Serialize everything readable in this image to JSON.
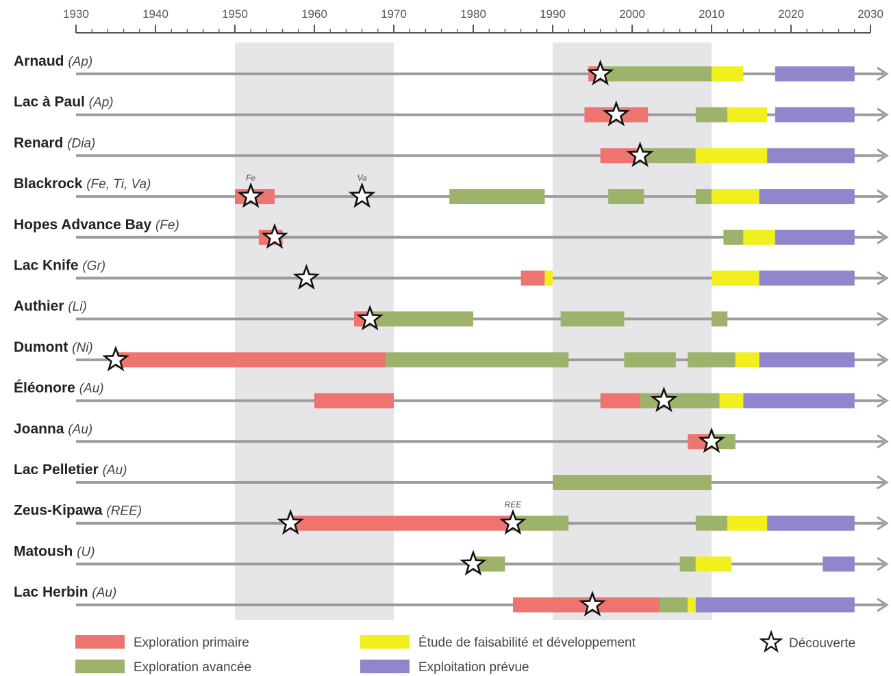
{
  "chart_data": {
    "type": "timeline",
    "x_ticks": [
      1930,
      1940,
      1950,
      1960,
      1970,
      1980,
      1990,
      2000,
      2010,
      2020,
      2030
    ],
    "xlim": [
      1930,
      2030
    ],
    "shaded_periods": [
      [
        1950,
        1970
      ],
      [
        1990,
        2010
      ]
    ],
    "phase_colors": {
      "primary": "#ee7470",
      "advanced": "#9db36b",
      "feasibility": "#f2ef1e",
      "exploitation": "#8f86cc"
    },
    "projects": [
      {
        "name": "Arnaud",
        "minerals": "(Ap)",
        "bars": [
          {
            "phase": "primary",
            "start": 1994.5,
            "end": 1996.5
          },
          {
            "phase": "advanced",
            "start": 1996.5,
            "end": 2010
          },
          {
            "phase": "feasibility",
            "start": 2010,
            "end": 2014
          },
          {
            "phase": "exploitation",
            "start": 2018,
            "end": 2028
          }
        ],
        "discoveries": [
          {
            "year": 1996,
            "label": ""
          }
        ]
      },
      {
        "name": "Lac à Paul",
        "minerals": "(Ap)",
        "bars": [
          {
            "phase": "primary",
            "start": 1994,
            "end": 2002
          },
          {
            "phase": "advanced",
            "start": 2008,
            "end": 2012
          },
          {
            "phase": "feasibility",
            "start": 2012,
            "end": 2017
          },
          {
            "phase": "exploitation",
            "start": 2018,
            "end": 2028
          }
        ],
        "discoveries": [
          {
            "year": 1998,
            "label": ""
          }
        ]
      },
      {
        "name": "Renard",
        "minerals": "(Dia)",
        "bars": [
          {
            "phase": "primary",
            "start": 1996,
            "end": 2001
          },
          {
            "phase": "advanced",
            "start": 2001,
            "end": 2008
          },
          {
            "phase": "feasibility",
            "start": 2008,
            "end": 2017
          },
          {
            "phase": "exploitation",
            "start": 2017,
            "end": 2028
          }
        ],
        "discoveries": [
          {
            "year": 2001,
            "label": ""
          }
        ]
      },
      {
        "name": "Blackrock",
        "minerals": "(Fe, Ti, Va)",
        "bars": [
          {
            "phase": "primary",
            "start": 1950,
            "end": 1955
          },
          {
            "phase": "advanced",
            "start": 1977,
            "end": 1989
          },
          {
            "phase": "advanced",
            "start": 1997,
            "end": 2001.5
          },
          {
            "phase": "advanced",
            "start": 2008,
            "end": 2010
          },
          {
            "phase": "feasibility",
            "start": 2010,
            "end": 2016
          },
          {
            "phase": "exploitation",
            "start": 2016,
            "end": 2028
          }
        ],
        "discoveries": [
          {
            "year": 1952,
            "label": "Fe"
          },
          {
            "year": 1966,
            "label": "Va"
          }
        ]
      },
      {
        "name": "Hopes Advance Bay",
        "minerals": "(Fe)",
        "bars": [
          {
            "phase": "primary",
            "start": 1953,
            "end": 1956
          },
          {
            "phase": "advanced",
            "start": 2011.5,
            "end": 2014
          },
          {
            "phase": "feasibility",
            "start": 2014,
            "end": 2018
          },
          {
            "phase": "exploitation",
            "start": 2018,
            "end": 2028
          }
        ],
        "discoveries": [
          {
            "year": 1955,
            "label": ""
          }
        ]
      },
      {
        "name": "Lac Knife",
        "minerals": "(Gr)",
        "bars": [
          {
            "phase": "primary",
            "start": 1986,
            "end": 1989
          },
          {
            "phase": "feasibility",
            "start": 1989,
            "end": 1990
          },
          {
            "phase": "feasibility",
            "start": 2010,
            "end": 2016
          },
          {
            "phase": "exploitation",
            "start": 2016,
            "end": 2028
          }
        ],
        "discoveries": [
          {
            "year": 1959,
            "label": ""
          }
        ]
      },
      {
        "name": "Authier",
        "minerals": "(Li)",
        "bars": [
          {
            "phase": "primary",
            "start": 1965,
            "end": 1967
          },
          {
            "phase": "advanced",
            "start": 1967,
            "end": 1980
          },
          {
            "phase": "advanced",
            "start": 1991,
            "end": 1999
          },
          {
            "phase": "advanced",
            "start": 2010,
            "end": 2012
          }
        ],
        "discoveries": [
          {
            "year": 1967,
            "label": ""
          }
        ]
      },
      {
        "name": "Dumont",
        "minerals": "(Ni)",
        "bars": [
          {
            "phase": "primary",
            "start": 1935,
            "end": 1969
          },
          {
            "phase": "advanced",
            "start": 1969,
            "end": 1992
          },
          {
            "phase": "advanced",
            "start": 1999,
            "end": 2005.5
          },
          {
            "phase": "advanced",
            "start": 2007,
            "end": 2013
          },
          {
            "phase": "feasibility",
            "start": 2013,
            "end": 2016
          },
          {
            "phase": "exploitation",
            "start": 2016,
            "end": 2028
          }
        ],
        "discoveries": [
          {
            "year": 1935,
            "label": ""
          }
        ]
      },
      {
        "name": "Éléonore",
        "minerals": "(Au)",
        "bars": [
          {
            "phase": "primary",
            "start": 1960,
            "end": 1970
          },
          {
            "phase": "primary",
            "start": 1996,
            "end": 2001
          },
          {
            "phase": "advanced",
            "start": 2001,
            "end": 2011
          },
          {
            "phase": "feasibility",
            "start": 2011,
            "end": 2014
          },
          {
            "phase": "exploitation",
            "start": 2014,
            "end": 2028
          }
        ],
        "discoveries": [
          {
            "year": 2004,
            "label": ""
          }
        ]
      },
      {
        "name": "Joanna",
        "minerals": "(Au)",
        "bars": [
          {
            "phase": "primary",
            "start": 2007,
            "end": 2010
          },
          {
            "phase": "advanced",
            "start": 2010,
            "end": 2013
          }
        ],
        "discoveries": [
          {
            "year": 2010,
            "label": ""
          }
        ]
      },
      {
        "name": "Lac Pelletier",
        "minerals": "(Au)",
        "bars": [
          {
            "phase": "advanced",
            "start": 1990,
            "end": 2010
          }
        ],
        "discoveries": []
      },
      {
        "name": "Zeus-Kipawa",
        "minerals": "(REE)",
        "bars": [
          {
            "phase": "primary",
            "start": 1957,
            "end": 1985
          },
          {
            "phase": "advanced",
            "start": 1985,
            "end": 1992
          },
          {
            "phase": "advanced",
            "start": 2008,
            "end": 2012
          },
          {
            "phase": "feasibility",
            "start": 2012,
            "end": 2017
          },
          {
            "phase": "exploitation",
            "start": 2017,
            "end": 2028
          }
        ],
        "discoveries": [
          {
            "year": 1957,
            "label": ""
          },
          {
            "year": 1985,
            "label": "REE"
          }
        ]
      },
      {
        "name": "Matoush",
        "minerals": "(U)",
        "bars": [
          {
            "phase": "advanced",
            "start": 1980,
            "end": 1984
          },
          {
            "phase": "advanced",
            "start": 2006,
            "end": 2008
          },
          {
            "phase": "feasibility",
            "start": 2008,
            "end": 2012.5
          },
          {
            "phase": "exploitation",
            "start": 2024,
            "end": 2028
          }
        ],
        "discoveries": [
          {
            "year": 1980,
            "label": ""
          }
        ]
      },
      {
        "name": "Lac Herbin",
        "minerals": "(Au)",
        "bars": [
          {
            "phase": "primary",
            "start": 1985,
            "end": 2003.5
          },
          {
            "phase": "advanced",
            "start": 2003.5,
            "end": 2007
          },
          {
            "phase": "feasibility",
            "start": 2007,
            "end": 2008
          },
          {
            "phase": "exploitation",
            "start": 2008,
            "end": 2028
          }
        ],
        "discoveries": [
          {
            "year": 1995,
            "label": ""
          }
        ]
      }
    ],
    "legend": [
      {
        "phase": "primary",
        "label": "Exploration primaire"
      },
      {
        "phase": "advanced",
        "label": "Exploration avancée"
      },
      {
        "phase": "feasibility",
        "label": "Étude de faisabilité et développement"
      },
      {
        "phase": "exploitation",
        "label": "Exploitation prévue"
      },
      {
        "phase": "discovery",
        "label": "Découverte"
      }
    ]
  }
}
